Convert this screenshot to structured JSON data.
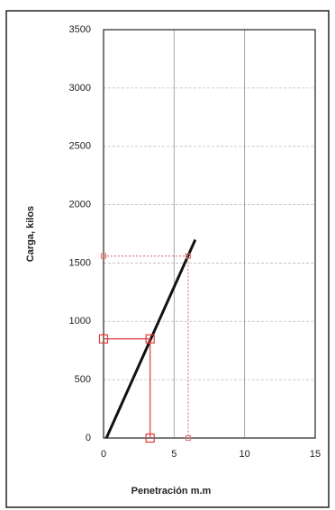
{
  "chart_data": {
    "type": "line",
    "xlabel": "Penetración m.m",
    "ylabel": "Carga, kilos",
    "xlim": [
      0,
      15
    ],
    "ylim": [
      0,
      3500
    ],
    "xticks": [
      0,
      5,
      10,
      15
    ],
    "yticks": [
      0,
      500,
      1000,
      1500,
      2000,
      2500,
      3000,
      3500
    ],
    "grid": true,
    "series": [
      {
        "color": "#111111",
        "x": [
          0.2,
          6.5
        ],
        "values": [
          0,
          1700
        ]
      },
      {
        "color": "#e03a3a",
        "x": [
          0,
          3.3,
          3.3
        ],
        "values": [
          850,
          850,
          0
        ],
        "marker": "square"
      },
      {
        "color": "#e07a7a",
        "x": [
          0,
          6,
          6
        ],
        "values": [
          1560,
          1560,
          0
        ],
        "marker": "small-square",
        "dashed": true
      }
    ]
  }
}
